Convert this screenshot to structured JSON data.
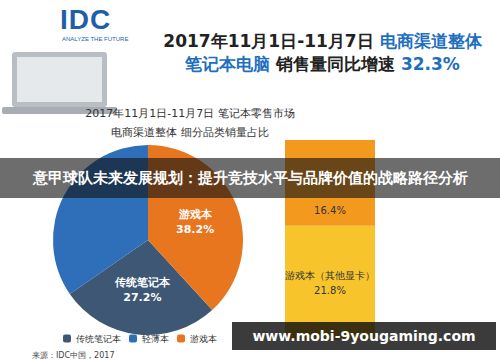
{
  "header": {
    "logo": "IDC",
    "tagline": "ANALYZE THE FUTURE",
    "title": [
      "2017年11月1日-11月7日 电商渠道整体",
      "笔记本电脑 销售量同比增速 32.3%"
    ]
  },
  "chart_data": [
    {
      "type": "pie",
      "title": [
        "2017年11月1日-11月7日 笔记本零售市场",
        "电商渠道整体 细分品类销量占比"
      ],
      "categories": [
        "传统笔记本",
        "轻薄本",
        "游戏本"
      ],
      "values": [
        27.2,
        34.6,
        38.2
      ],
      "value_labels": [
        "27.2%",
        null,
        "38.2%"
      ],
      "colors": [
        "#3d5775",
        "#2f6fba",
        "#e8761f"
      ],
      "data_labels": true,
      "legend": "bottom"
    },
    {
      "type": "bar",
      "stacked": true,
      "categories": [
        null
      ],
      "series": [
        {
          "name": "游戏本（其他显卡）",
          "color": "#f7c52b",
          "values": [
            21.8
          ],
          "value_labels": [
            "21.8%"
          ]
        },
        {
          "color": "#f39a1e",
          "values": [
            16.4
          ],
          "value_labels": [
            "16.4%"
          ]
        }
      ],
      "ylim": [
        0,
        38.2
      ],
      "tick_labels": false,
      "data_labels": true
    }
  ],
  "source": "来源：IDC中国，2017",
  "overlays": [
    "意甲球队未来发展规划：提升竞技水平与品牌价值的战略路径分析",
    "www.mobi-9yougaming.com"
  ]
}
